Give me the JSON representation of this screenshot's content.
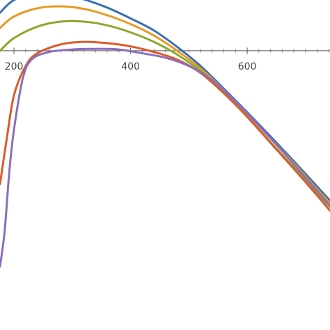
{
  "chart_data": {
    "type": "line",
    "title": "",
    "xlabel": "",
    "ylabel": "",
    "xlim": [
      176,
      742
    ],
    "ylim": [
      -2.2,
      0.4
    ],
    "x_tick_labels": [
      "200",
      "400",
      "600"
    ],
    "x_ticks": [
      200,
      400,
      600
    ],
    "x_minor_ticks": [
      220,
      240,
      260,
      280,
      300,
      320,
      340,
      360,
      380,
      420,
      440,
      460,
      480,
      500,
      520,
      540,
      560,
      580,
      620,
      640,
      660,
      680,
      700,
      720,
      740
    ],
    "legend": "none",
    "grid": false,
    "series": [
      {
        "color": "#3a6fb5",
        "points": [
          [
            176,
            0.3
          ],
          [
            200,
            0.4
          ],
          [
            240,
            0.455
          ],
          [
            280,
            0.45
          ],
          [
            320,
            0.405
          ],
          [
            360,
            0.34
          ],
          [
            400,
            0.255
          ],
          [
            440,
            0.16
          ],
          [
            480,
            0.03
          ],
          [
            520,
            -0.12
          ],
          [
            560,
            -0.3
          ],
          [
            600,
            -0.485
          ],
          [
            640,
            -0.675
          ],
          [
            680,
            -0.87
          ],
          [
            720,
            -1.07
          ],
          [
            742,
            -1.18
          ]
        ]
      },
      {
        "color": "#e69a24",
        "points": [
          [
            176,
            0.18
          ],
          [
            200,
            0.27
          ],
          [
            240,
            0.335
          ],
          [
            280,
            0.35
          ],
          [
            320,
            0.33
          ],
          [
            360,
            0.28
          ],
          [
            400,
            0.21
          ],
          [
            440,
            0.12
          ],
          [
            480,
            0.0
          ],
          [
            520,
            -0.14
          ],
          [
            560,
            -0.31
          ],
          [
            600,
            -0.5
          ],
          [
            640,
            -0.69
          ],
          [
            680,
            -0.885
          ],
          [
            720,
            -1.09
          ],
          [
            742,
            -1.2
          ]
        ]
      },
      {
        "color": "#8aa82e",
        "points": [
          [
            176,
            0.0
          ],
          [
            200,
            0.1
          ],
          [
            240,
            0.19
          ],
          [
            280,
            0.23
          ],
          [
            320,
            0.23
          ],
          [
            360,
            0.2
          ],
          [
            400,
            0.145
          ],
          [
            440,
            0.07
          ],
          [
            480,
            -0.03
          ],
          [
            520,
            -0.16
          ],
          [
            560,
            -0.33
          ],
          [
            600,
            -0.52
          ],
          [
            640,
            -0.72
          ],
          [
            680,
            -0.92
          ],
          [
            720,
            -1.12
          ],
          [
            742,
            -1.23
          ]
        ]
      },
      {
        "color": "#dd5a2a",
        "points": [
          [
            176,
            -1.05
          ],
          [
            188,
            -0.68
          ],
          [
            200,
            -0.35
          ],
          [
            220,
            -0.12
          ],
          [
            240,
            -0.02
          ],
          [
            280,
            0.05
          ],
          [
            320,
            0.07
          ],
          [
            360,
            0.06
          ],
          [
            400,
            0.035
          ],
          [
            440,
            -0.01
          ],
          [
            480,
            -0.07
          ],
          [
            520,
            -0.175
          ],
          [
            560,
            -0.335
          ],
          [
            600,
            -0.52
          ],
          [
            640,
            -0.725
          ],
          [
            680,
            -0.93
          ],
          [
            720,
            -1.14
          ],
          [
            742,
            -1.26
          ]
        ]
      },
      {
        "color": "#8a6fbd",
        "points": [
          [
            176,
            -1.7
          ],
          [
            184,
            -1.42
          ],
          [
            192,
            -0.95
          ],
          [
            200,
            -0.62
          ],
          [
            215,
            -0.22
          ],
          [
            230,
            -0.07
          ],
          [
            260,
            -0.01
          ],
          [
            300,
            0.01
          ],
          [
            340,
            0.015
          ],
          [
            380,
            0.01
          ],
          [
            420,
            -0.02
          ],
          [
            460,
            -0.055
          ],
          [
            500,
            -0.12
          ],
          [
            540,
            -0.23
          ],
          [
            580,
            -0.4
          ],
          [
            620,
            -0.59
          ],
          [
            660,
            -0.79
          ],
          [
            700,
            -1.0
          ],
          [
            742,
            -1.22
          ]
        ]
      }
    ]
  }
}
